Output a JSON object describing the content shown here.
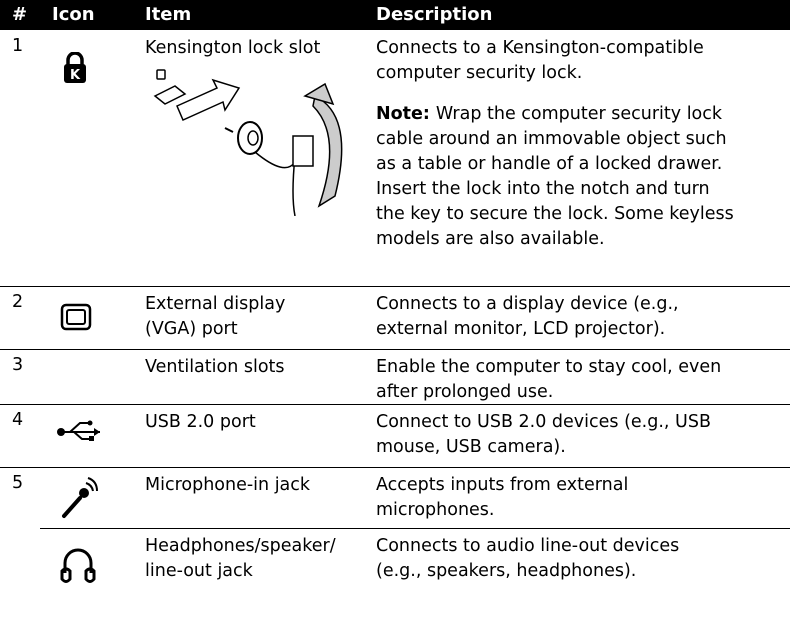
{
  "table": {
    "header": [
      "#",
      "Icon",
      "Item",
      "Description"
    ],
    "rows": [
      {
        "number": "1",
        "item": [
          "Kensington lock slot"
        ],
        "description": [
          "Connects to a Kensington-compatible",
          "computer security lock."
        ],
        "note": {
          "label": "Note:",
          "lines": [
            "Wrap the computer security lock",
            "cable around an immovable object such",
            "as a table or handle of a locked drawer.",
            "Insert the lock into the notch and turn",
            "the key to secure the lock. Some keyless",
            "models are also available."
          ]
        }
      },
      {
        "number": "2",
        "item": [
          "External display",
          "(VGA) port"
        ],
        "description": [
          "Connects to a display device (e.g.,",
          "external monitor, LCD projector)."
        ]
      },
      {
        "number": "3",
        "item": [
          "Ventilation slots"
        ],
        "description": [
          "Enable the computer to stay cool, even",
          "after prolonged use."
        ]
      },
      {
        "number": "4",
        "item": [
          "USB 2.0 port"
        ],
        "description": [
          "Connect to USB 2.0 devices (e.g., USB",
          "mouse, USB camera)."
        ]
      },
      {
        "number": "5",
        "item": [
          "Microphone-in jack"
        ],
        "description": [
          "Accepts inputs from external",
          "microphones."
        ]
      },
      {
        "item": [
          "Headphones/speaker/",
          "line-out jack"
        ],
        "description": [
          "Connects to audio line-out devices",
          "(e.g., speakers, headphones)."
        ]
      }
    ]
  }
}
